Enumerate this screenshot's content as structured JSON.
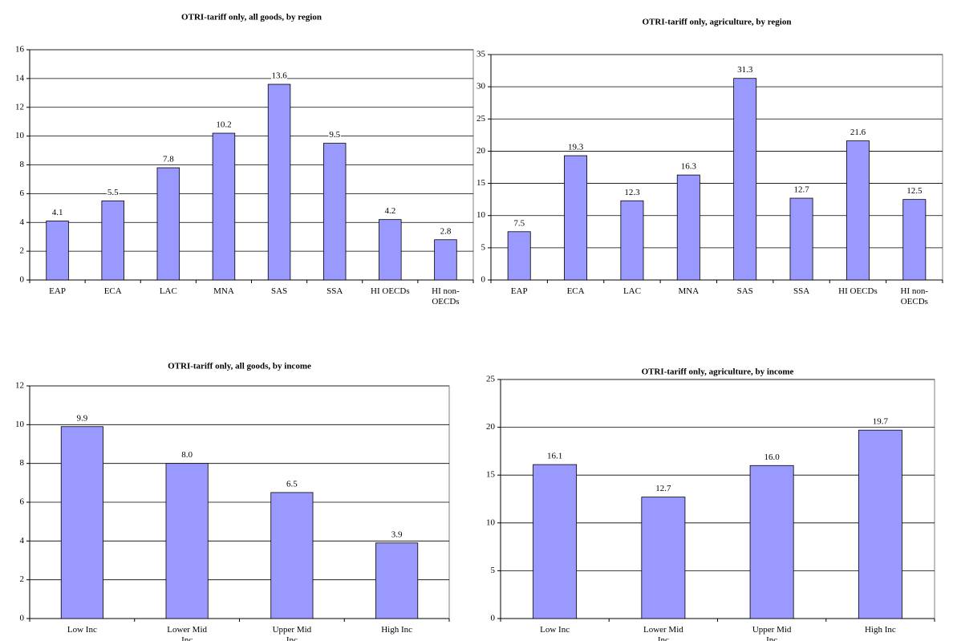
{
  "chart_data": [
    {
      "type": "bar",
      "title": "OTRI-tariff only, all goods, by region",
      "categories": [
        "EAP",
        "ECA",
        "LAC",
        "MNA",
        "SAS",
        "SSA",
        "HI OECDs",
        "HI non-OECDs"
      ],
      "values": [
        4.1,
        5.5,
        7.8,
        10.2,
        13.6,
        9.5,
        4.2,
        2.8
      ],
      "value_labels": [
        "4.1",
        "5.5",
        "7.8",
        "10.2",
        "13.6",
        "9.5",
        "4.2",
        "2.8"
      ],
      "color": "#9999ff",
      "ylim": [
        0,
        16
      ],
      "yticks": [
        0,
        2,
        4,
        6,
        8,
        10,
        12,
        14,
        16
      ],
      "grid": true
    },
    {
      "type": "bar",
      "title": "OTRI-tariff only, agriculture, by region",
      "categories": [
        "EAP",
        "ECA",
        "LAC",
        "MNA",
        "SAS",
        "SSA",
        "HI OECDs",
        "HI non-OECDs"
      ],
      "values": [
        7.5,
        19.3,
        12.3,
        16.3,
        31.3,
        12.7,
        21.6,
        12.5
      ],
      "value_labels": [
        "7.5",
        "19.3",
        "12.3",
        "16.3",
        "31.3",
        "12.7",
        "21.6",
        "12.5"
      ],
      "color": "#9999ff",
      "ylim": [
        0,
        35
      ],
      "yticks": [
        0,
        5,
        10,
        15,
        20,
        25,
        30,
        35
      ],
      "grid": true
    },
    {
      "type": "bar",
      "title": "OTRI-tariff only, all goods, by income",
      "categories": [
        "Low Inc",
        "Lower Mid Inc",
        "Upper Mid Inc",
        "High Inc"
      ],
      "values": [
        9.9,
        8.0,
        6.5,
        3.9
      ],
      "value_labels": [
        "9.9",
        "8.0",
        "6.5",
        "3.9"
      ],
      "color": "#9999ff",
      "ylim": [
        0,
        12
      ],
      "yticks": [
        0,
        2,
        4,
        6,
        8,
        10,
        12
      ],
      "grid": true
    },
    {
      "type": "bar",
      "title": "OTRI-tariff only, agriculture, by income",
      "categories": [
        "Low Inc",
        "Lower Mid Inc",
        "Upper Mid Inc",
        "High Inc"
      ],
      "values": [
        16.1,
        12.7,
        16.0,
        19.7
      ],
      "value_labels": [
        "16.1",
        "12.7",
        "16.0",
        "19.7"
      ],
      "color": "#9999ff",
      "ylim": [
        0,
        25
      ],
      "yticks": [
        0,
        5,
        10,
        15,
        20,
        25
      ],
      "grid": true
    }
  ]
}
